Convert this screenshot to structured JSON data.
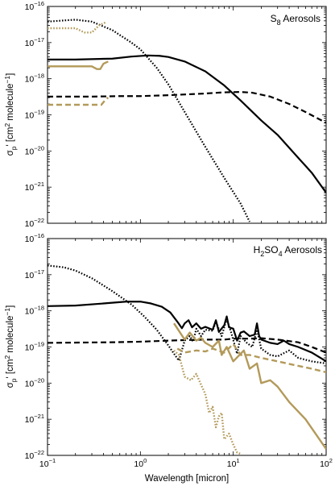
{
  "chart_data": [
    {
      "type": "line",
      "title": "S8 Aerosols",
      "title_parts": {
        "main": "S",
        "sub": "8",
        "rest": " Aerosols"
      },
      "xscale": "log",
      "yscale": "log",
      "xlim": [
        0.1,
        100
      ],
      "ylim": [
        1e-22,
        1e-16
      ],
      "xtick_labels": [],
      "ytick_labels": [
        "10^-22",
        "10^-21",
        "10^-20",
        "10^-19",
        "10^-18",
        "10^-17",
        "10^-16"
      ],
      "legend": "none",
      "series": [
        {
          "style": "solid",
          "color": "#000000",
          "points": [
            [
              0.1,
              3.4e-18
            ],
            [
              0.2,
              3.4e-18
            ],
            [
              0.5,
              3.6e-18
            ],
            [
              0.8,
              4.1e-18
            ],
            [
              1.2,
              4.4e-18
            ],
            [
              1.6,
              4.3e-18
            ],
            [
              2,
              4e-18
            ],
            [
              3,
              3e-18
            ],
            [
              5,
              1.6e-18
            ],
            [
              8,
              6.5e-19
            ],
            [
              12,
              2.5e-19
            ],
            [
              20,
              7e-20
            ],
            [
              30,
              2.8e-20
            ],
            [
              50,
              6.5e-21
            ],
            [
              70,
              2.5e-21
            ],
            [
              100,
              7e-22
            ]
          ]
        },
        {
          "style": "dashed",
          "color": "#000000",
          "points": [
            [
              0.1,
              3.2e-19
            ],
            [
              0.3,
              3.2e-19
            ],
            [
              0.6,
              3.3e-19
            ],
            [
              1,
              3.3e-19
            ],
            [
              2,
              3.5e-19
            ],
            [
              5,
              3.9e-19
            ],
            [
              8,
              4.2e-19
            ],
            [
              12,
              4.3e-19
            ],
            [
              16,
              4.1e-19
            ],
            [
              25,
              3.2e-19
            ],
            [
              40,
              2e-19
            ],
            [
              60,
              1.2e-19
            ],
            [
              100,
              6e-20
            ]
          ]
        },
        {
          "style": "dotted",
          "color": "#000000",
          "points": [
            [
              0.1,
              3.8e-17
            ],
            [
              0.15,
              4.1e-17
            ],
            [
              0.2,
              4.3e-17
            ],
            [
              0.3,
              3.8e-17
            ],
            [
              0.5,
              2.2e-17
            ],
            [
              0.8,
              1e-17
            ],
            [
              1,
              6.5e-18
            ],
            [
              1.5,
              2e-18
            ],
            [
              2,
              7e-19
            ],
            [
              3,
              1.2e-19
            ],
            [
              5,
              1.3e-20
            ],
            [
              8,
              1.8e-21
            ],
            [
              12,
              3.5e-22
            ],
            [
              15,
              1.1e-22
            ]
          ]
        },
        {
          "style": "solid",
          "color": "#b39a5a",
          "points": [
            [
              0.1,
              2.2e-18
            ],
            [
              0.2,
              2.2e-18
            ],
            [
              0.3,
              2.2e-18
            ],
            [
              0.34,
              1.85e-18
            ],
            [
              0.37,
              1.85e-18
            ],
            [
              0.4,
              2.6e-18
            ],
            [
              0.45,
              3e-18
            ]
          ]
        },
        {
          "style": "dashed",
          "color": "#b39a5a",
          "points": [
            [
              0.1,
              1.9e-19
            ],
            [
              0.3,
              1.9e-19
            ],
            [
              0.38,
              1.9e-19
            ],
            [
              0.42,
              2.6e-19
            ],
            [
              0.45,
              3e-19
            ]
          ]
        },
        {
          "style": "dotted",
          "color": "#b39a5a",
          "points": [
            [
              0.1,
              2.5e-17
            ],
            [
              0.2,
              2.5e-17
            ],
            [
              0.25,
              1.9e-17
            ],
            [
              0.3,
              1.9e-17
            ],
            [
              0.36,
              3e-17
            ],
            [
              0.42,
              3.6e-17
            ]
          ]
        }
      ]
    },
    {
      "type": "line",
      "title": "H2SO4 Aerosols",
      "title_parts": {
        "main": "H",
        "sub": "2",
        "mid": "SO",
        "sub2": "4",
        "rest": " Aerosols"
      },
      "xscale": "log",
      "yscale": "log",
      "xlim": [
        0.1,
        100
      ],
      "ylim": [
        1e-22,
        1e-16
      ],
      "xlabel": "Wavelength [micron]",
      "xtick_labels": [
        "10^-1",
        "10^0",
        "10^1",
        "10^2"
      ],
      "ytick_labels": [
        "10^-22",
        "10^-21",
        "10^-20",
        "10^-19",
        "10^-18",
        "10^-17",
        "10^-16"
      ],
      "legend": "none",
      "series": [
        {
          "style": "solid",
          "color": "#000000",
          "points": [
            [
              0.1,
              1.35e-18
            ],
            [
              0.2,
              1.4e-18
            ],
            [
              0.4,
              1.6e-18
            ],
            [
              0.7,
              1.8e-18
            ],
            [
              1,
              1.8e-18
            ],
            [
              1.3,
              1.6e-18
            ],
            [
              1.7,
              1.3e-18
            ],
            [
              2.1,
              9e-19
            ],
            [
              2.5,
              5e-19
            ],
            [
              2.8,
              3.3e-19
            ],
            [
              3,
              4.5e-19
            ],
            [
              3.3,
              5.5e-19
            ],
            [
              3.6,
              3.5e-19
            ],
            [
              4,
              4.5e-19
            ],
            [
              4.5,
              3.2e-19
            ],
            [
              5,
              3.6e-19
            ],
            [
              6,
              3e-19
            ],
            [
              6.5,
              5.5e-19
            ],
            [
              7,
              2.6e-19
            ],
            [
              8,
              4e-19
            ],
            [
              8.5,
              7e-19
            ],
            [
              9,
              3.5e-19
            ],
            [
              10,
              3.2e-19
            ],
            [
              11,
              1.5e-19
            ],
            [
              12,
              2.5e-19
            ],
            [
              13,
              2.7e-19
            ],
            [
              15,
              2e-19
            ],
            [
              17,
              2.2e-19
            ],
            [
              18,
              4.5e-19
            ],
            [
              19,
              2e-19
            ],
            [
              20,
              1.6e-19
            ],
            [
              25,
              1.3e-19
            ],
            [
              30,
              1.2e-19
            ],
            [
              35,
              1.5e-19
            ],
            [
              40,
              1.2e-19
            ],
            [
              50,
              1e-19
            ],
            [
              70,
              7e-20
            ],
            [
              100,
              4e-20
            ]
          ]
        },
        {
          "style": "dashed",
          "color": "#000000",
          "points": [
            [
              0.1,
              1.3e-19
            ],
            [
              0.5,
              1.35e-19
            ],
            [
              1,
              1.4e-19
            ],
            [
              2,
              1.5e-19
            ],
            [
              3,
              1.55e-19
            ],
            [
              5,
              1.6e-19
            ],
            [
              8,
              1.6e-19
            ],
            [
              10,
              1.7e-19
            ],
            [
              15,
              1.7e-19
            ],
            [
              20,
              1.75e-19
            ],
            [
              30,
              1.6e-19
            ],
            [
              50,
              1.35e-19
            ],
            [
              70,
              1e-19
            ],
            [
              100,
              7e-20
            ]
          ]
        },
        {
          "style": "dotted",
          "color": "#000000",
          "points": [
            [
              0.1,
              1.8e-17
            ],
            [
              0.15,
              1.6e-17
            ],
            [
              0.2,
              1.3e-17
            ],
            [
              0.3,
              8e-18
            ],
            [
              0.5,
              3.5e-18
            ],
            [
              0.8,
              1.5e-18
            ],
            [
              1.1,
              7e-19
            ],
            [
              1.5,
              3e-19
            ],
            [
              2,
              1.1e-19
            ],
            [
              2.3,
              6.5e-20
            ],
            [
              2.6,
              4.2e-20
            ],
            [
              3,
              1.5e-19
            ],
            [
              3.4,
              2e-19
            ],
            [
              3.7,
              1.4e-19
            ],
            [
              4,
              3.2e-19
            ],
            [
              4.5,
              2e-19
            ],
            [
              5,
              3e-19
            ],
            [
              6,
              2.8e-19
            ],
            [
              6.5,
              5e-19
            ],
            [
              7.5,
              2e-19
            ],
            [
              8.5,
              6e-19
            ],
            [
              9.5,
              2.5e-19
            ],
            [
              11,
              6.5e-20
            ],
            [
              12,
              2e-19
            ],
            [
              14,
              1.3e-19
            ],
            [
              16,
              1e-19
            ],
            [
              18,
              3e-19
            ],
            [
              20,
              9e-20
            ],
            [
              25,
              6e-20
            ],
            [
              30,
              5.5e-20
            ],
            [
              40,
              8e-20
            ],
            [
              50,
              5e-20
            ],
            [
              70,
              4e-20
            ],
            [
              100,
              3.5e-20
            ]
          ]
        },
        {
          "style": "solid",
          "color": "#b39a5a",
          "points": [
            [
              2.3,
              4.5e-19
            ],
            [
              3,
              1.6e-19
            ],
            [
              3.4,
              2.5e-19
            ],
            [
              4,
              1.5e-19
            ],
            [
              4.5,
              1.8e-19
            ],
            [
              5,
              1.3e-19
            ],
            [
              6,
              1e-19
            ],
            [
              7,
              1.5e-19
            ],
            [
              7.5,
              6e-20
            ],
            [
              8.5,
              1e-19
            ],
            [
              10,
              4e-20
            ],
            [
              13,
              8e-20
            ],
            [
              15,
              2.5e-20
            ],
            [
              18,
              3.5e-20
            ],
            [
              20,
              1e-20
            ],
            [
              25,
              1.2e-20
            ],
            [
              30,
              8e-21
            ],
            [
              40,
              3e-21
            ],
            [
              60,
              1e-21
            ],
            [
              100,
              1.5e-22
            ]
          ]
        },
        {
          "style": "dashed",
          "color": "#b39a5a",
          "points": [
            [
              2.5,
              9e-20
            ],
            [
              3,
              7e-20
            ],
            [
              4,
              8e-20
            ],
            [
              5,
              7.5e-20
            ],
            [
              6,
              9e-20
            ],
            [
              8,
              7e-20
            ],
            [
              10,
              1.2e-19
            ],
            [
              12,
              6e-20
            ],
            [
              15,
              6e-20
            ],
            [
              20,
              5e-20
            ],
            [
              30,
              4e-20
            ],
            [
              50,
              3e-20
            ],
            [
              70,
              2.5e-20
            ],
            [
              100,
              2e-20
            ]
          ]
        },
        {
          "style": "dotted",
          "color": "#b39a5a",
          "points": [
            [
              2.3,
              8e-20
            ],
            [
              2.6,
              6e-20
            ],
            [
              3,
              1.5e-20
            ],
            [
              3.5,
              1.2e-20
            ],
            [
              4,
              1.8e-20
            ],
            [
              4.5,
              9e-21
            ],
            [
              5,
              5e-21
            ],
            [
              5.5,
              1.5e-21
            ],
            [
              6,
              2.2e-21
            ],
            [
              6.5,
              6e-22
            ],
            [
              7,
              1.2e-21
            ],
            [
              7.5,
              1.5e-21
            ],
            [
              8,
              2.8e-22
            ],
            [
              9,
              4e-22
            ],
            [
              10,
              2e-22
            ],
            [
              11,
              1.2e-22
            ],
            [
              12,
              1.1e-22
            ]
          ]
        }
      ]
    }
  ],
  "shared": {
    "ylabel_parts": {
      "sigma": "σ",
      "sub": "p",
      "rest": "' [cm",
      "sup": "2",
      "rest2": " molecule",
      "sup2": "−1",
      "end": "]"
    }
  }
}
